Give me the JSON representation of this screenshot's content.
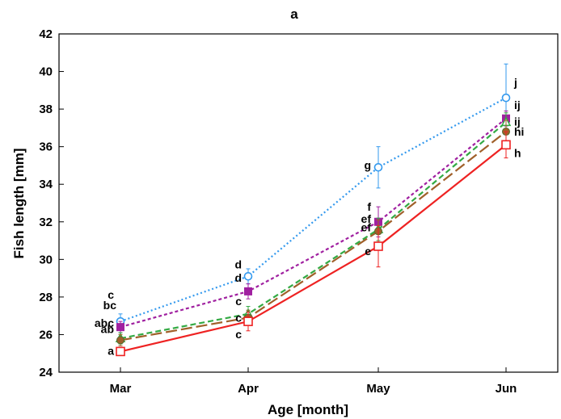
{
  "chart_data": {
    "type": "line",
    "title": "a",
    "xlabel": "Age [month]",
    "ylabel": "Fish length [mm]",
    "categories": [
      "Mar",
      "Apr",
      "May",
      "Jun"
    ],
    "ylim": [
      24,
      42
    ],
    "yticks": [
      24,
      26,
      28,
      30,
      32,
      34,
      36,
      38,
      40,
      42
    ],
    "grid": false,
    "legend": "none",
    "series": [
      {
        "color": "#3399ee",
        "line_style": "dotted",
        "marker": "open-circle",
        "values": [
          26.7,
          29.1,
          34.9,
          38.6
        ],
        "errors": [
          0.4,
          0.4,
          1.1,
          1.8
        ],
        "letters": [
          "c",
          "d",
          "g",
          "j"
        ]
      },
      {
        "color": "#a020a0",
        "line_style": "short-dash",
        "marker": "filled-square",
        "values": [
          26.4,
          28.3,
          32.0,
          37.5
        ],
        "errors": [
          0.3,
          0.4,
          0.8,
          0.4
        ],
        "letters": [
          "bc",
          "d",
          "f",
          "ij"
        ]
      },
      {
        "color": "#33aa44",
        "line_style": "dashed",
        "marker": "open-triangle",
        "values": [
          25.8,
          27.1,
          31.6,
          37.3
        ],
        "errors": [
          0.3,
          0.4,
          0.6,
          0.5
        ],
        "letters": [
          "abc",
          "c",
          "ef",
          "ij"
        ]
      },
      {
        "color": "#a0602a",
        "line_style": "long-dash",
        "marker": "filled-circle",
        "values": [
          25.7,
          26.9,
          31.5,
          36.8
        ],
        "errors": [
          0.3,
          0.4,
          0.6,
          0.6
        ],
        "letters": [
          "ab",
          "c",
          "ef",
          "hi"
        ]
      },
      {
        "color": "#ee2222",
        "line_style": "solid",
        "marker": "open-square",
        "values": [
          25.1,
          26.7,
          30.7,
          36.1
        ],
        "errors": [
          0.2,
          0.5,
          1.1,
          0.7
        ],
        "letters": [
          "a",
          "c",
          "e",
          "h"
        ]
      }
    ]
  }
}
